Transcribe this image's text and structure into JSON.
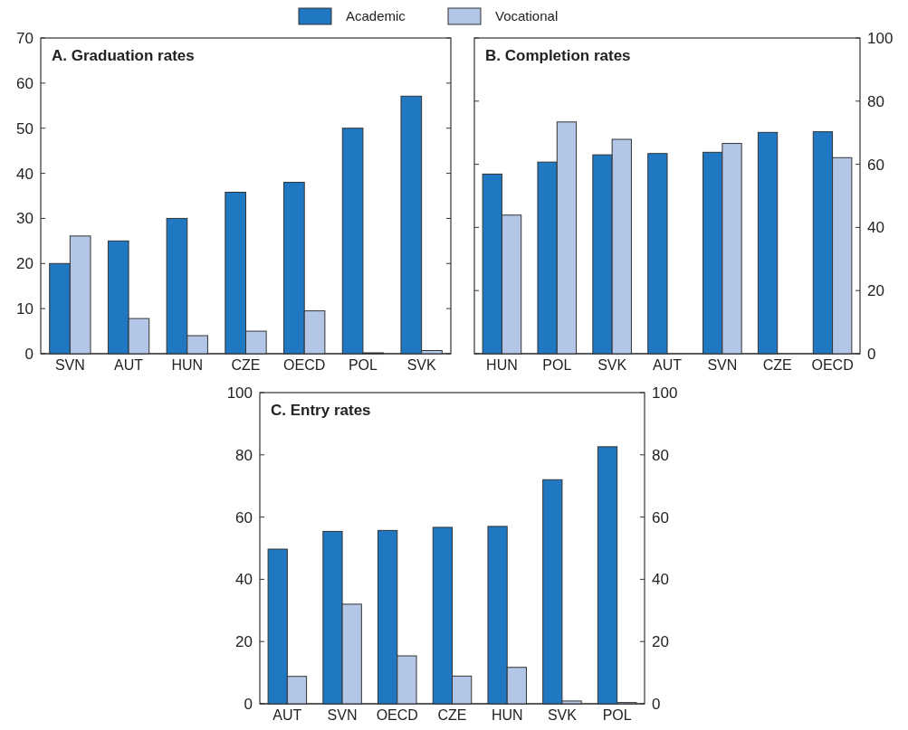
{
  "chart_data": [
    {
      "type": "bar",
      "title": "A. Graduation rates",
      "categories": [
        "SVN",
        "AUT",
        "HUN",
        "CZE",
        "OECD",
        "POL",
        "SVK"
      ],
      "series": [
        {
          "name": "Academic",
          "color": "#1f78c1",
          "values": [
            20,
            25,
            30,
            35.8,
            38,
            50,
            57.1
          ]
        },
        {
          "name": "Vocational",
          "color": "#b3c6e7",
          "values": [
            26.1,
            7.8,
            4,
            5,
            9.5,
            0.2,
            0.7
          ]
        }
      ],
      "ylim": [
        0,
        70
      ],
      "yticks": [
        0,
        10,
        20,
        30,
        40,
        50,
        60,
        70
      ],
      "legend": "top"
    },
    {
      "type": "bar",
      "title": "B. Completion rates",
      "categories": [
        "HUN",
        "POL",
        "SVK",
        "AUT",
        "SVN",
        "CZE",
        "OECD"
      ],
      "series": [
        {
          "color": "#1f78c1",
          "axis": "y2",
          "values": [
            56.9,
            60.7,
            63,
            63.4,
            63.8,
            70.1,
            70.3
          ]
        },
        {
          "color": "#b3c6e7",
          "axis": "y2",
          "values": [
            43.9,
            73.4,
            67.9,
            null,
            66.6,
            null,
            62.1
          ]
        }
      ],
      "y2lim": [
        0,
        100
      ],
      "y2ticks": [
        0,
        20,
        40,
        60,
        80,
        100
      ]
    },
    {
      "type": "bar",
      "title": "C. Entry rates",
      "categories": [
        "AUT",
        "SVN",
        "OECD",
        "CZE",
        "HUN",
        "SVK",
        "POL"
      ],
      "series": [
        {
          "color": "#1f78c1",
          "values": [
            49.7,
            55.4,
            55.7,
            56.7,
            57,
            72,
            82.6
          ]
        },
        {
          "color": "#b3c6e7",
          "values": [
            8.8,
            32,
            15.4,
            8.9,
            11.7,
            0.9,
            0.4
          ]
        }
      ],
      "ylim": [
        0,
        100
      ],
      "yticks": [
        0,
        20,
        40,
        60,
        80,
        100
      ],
      "y2lim": [
        0,
        100
      ],
      "y2ticks": [
        0,
        20,
        40,
        60,
        80,
        100
      ]
    }
  ]
}
